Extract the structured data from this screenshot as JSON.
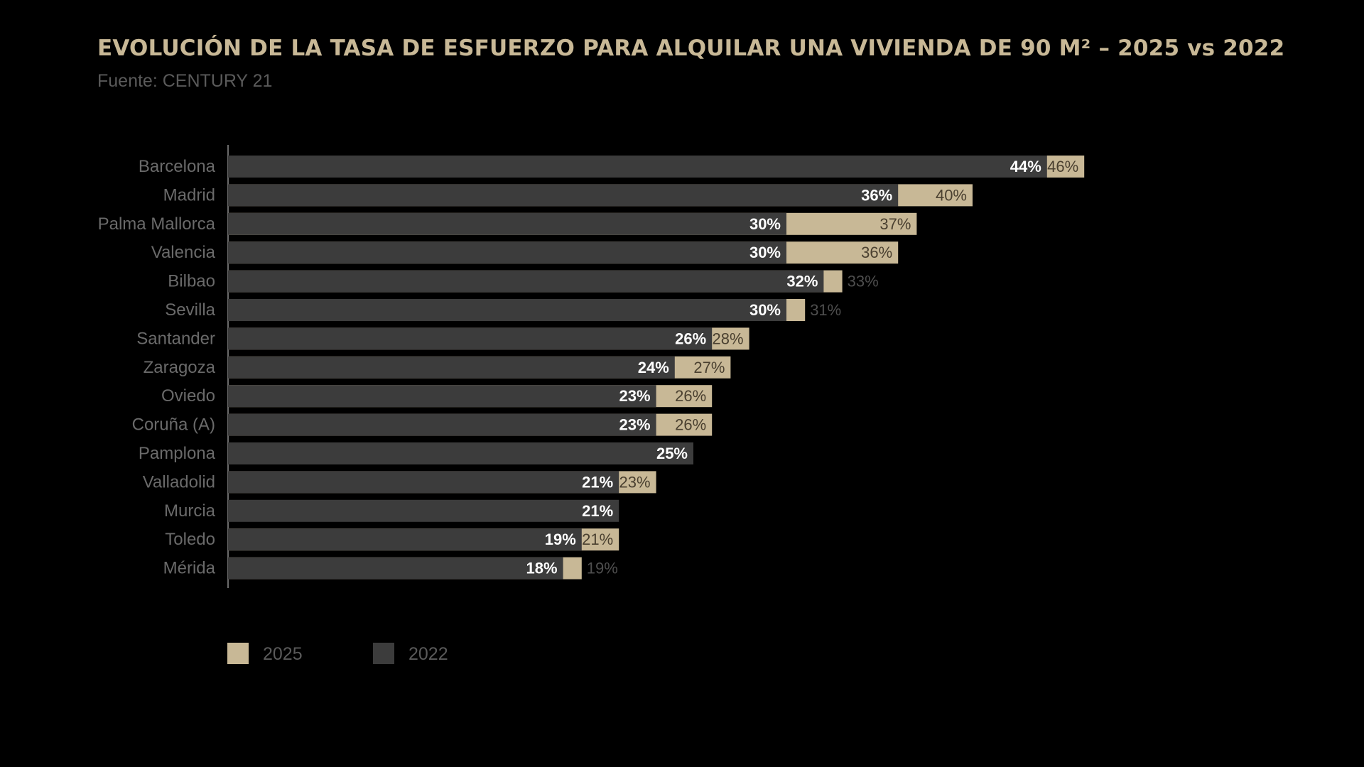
{
  "colors": {
    "background": "#000000",
    "title": "#c8b896",
    "subtitle": "#5a5a5a",
    "bar_2025": "#c8b896",
    "bar_2022": "#3c3c3c",
    "category_label": "#6a6a6a",
    "label_on_dark": "#ffffff",
    "label_on_light": "#4a4030",
    "label_outside": "#4e4e4e",
    "axis_line": "#6a6a6a"
  },
  "chart_data": {
    "type": "bar",
    "orientation": "horizontal",
    "title": "EVOLUCIÓN DE LA TASA DE ESFUERZO PARA ALQUILAR UNA VIVIENDA DE 90 M² – 2025 vs 2022",
    "subtitle": "Fuente: CENTURY 21",
    "categories": [
      "Barcelona",
      "Madrid",
      "Palma Mallorca",
      "Valencia",
      "Bilbao",
      "Sevilla",
      "Santander",
      "Zaragoza",
      "Oviedo",
      "Coruña (A)",
      "Pamplona",
      "Valladolid",
      "Murcia",
      "Toledo",
      "Mérida"
    ],
    "series": [
      {
        "name": "2025",
        "values": [
          46,
          40,
          37,
          36,
          33,
          31,
          28,
          27,
          26,
          26,
          25,
          23,
          21,
          21,
          19
        ],
        "labels": [
          "46%",
          "40%",
          "37%",
          "36%",
          "33%",
          "31%",
          "28%",
          "27%",
          "26%",
          "26%",
          "",
          "23%",
          "",
          "21%",
          "19%"
        ]
      },
      {
        "name": "2022",
        "values": [
          44,
          36,
          30,
          30,
          32,
          30,
          26,
          24,
          23,
          23,
          25,
          21,
          21,
          19,
          18
        ],
        "labels": [
          "44%",
          "36%",
          "30%",
          "30%",
          "32%",
          "30%",
          "26%",
          "24%",
          "23%",
          "23%",
          "25%",
          "21%",
          "21%",
          "19%",
          "18%"
        ]
      }
    ],
    "xlim": [
      0,
      60
    ],
    "grid": false,
    "legend_position": "bottom-left"
  }
}
